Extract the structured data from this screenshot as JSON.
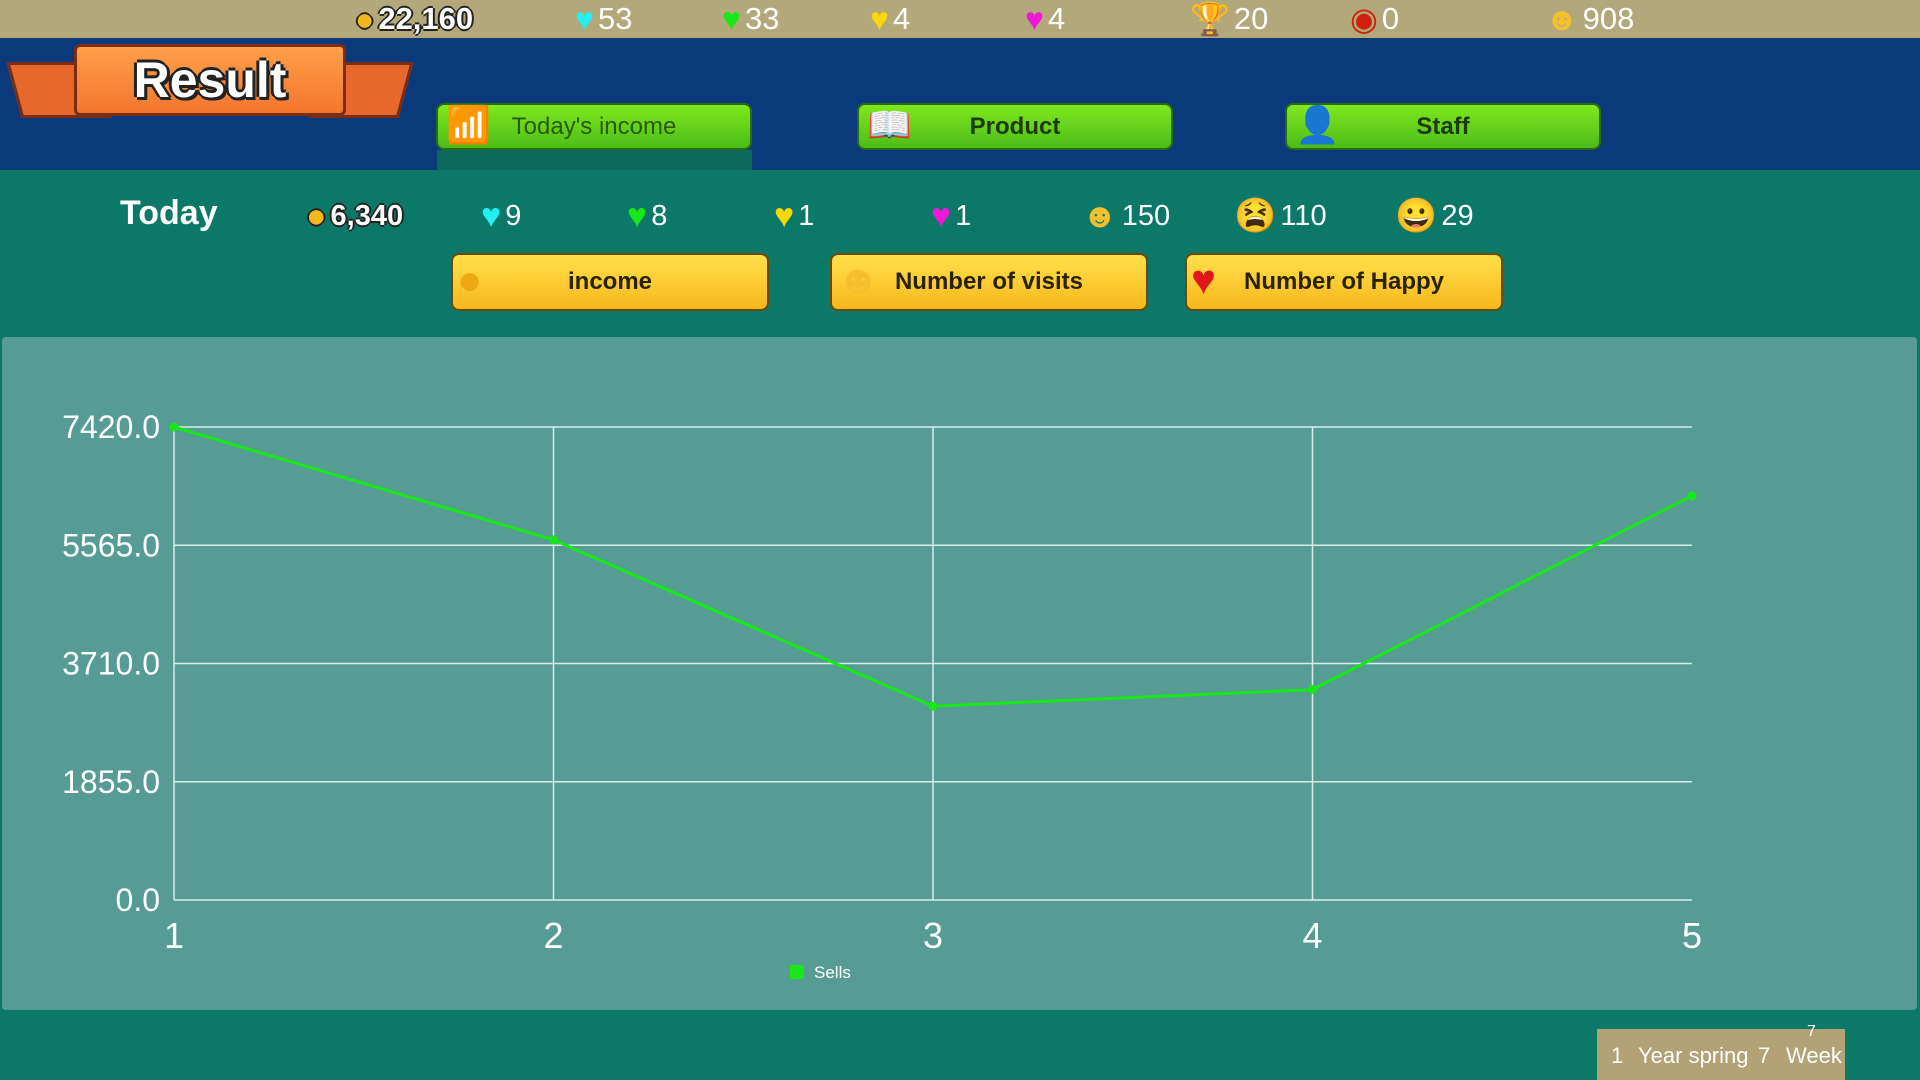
{
  "topbar": {
    "coins": "22,160",
    "cyan_hearts": "53",
    "green_hearts": "33",
    "yellow_hearts": "4",
    "pink_hearts": "4",
    "trophies": "20",
    "badges": "0",
    "smiles": "908"
  },
  "header": {
    "title": "Result",
    "tabs": [
      {
        "label": "Today's income",
        "icon": "chart-icon",
        "active": true
      },
      {
        "label": "Product",
        "icon": "book-icon"
      },
      {
        "label": "Staff",
        "icon": "person-icon"
      }
    ]
  },
  "today": {
    "label": "Today",
    "coins": "6,340",
    "cyan_hearts": "9",
    "green_hearts": "8",
    "yellow_hearts": "1",
    "pink_hearts": "1",
    "happy": "150",
    "angry": "110",
    "grin": "29"
  },
  "buttons": [
    {
      "label": "income",
      "icon": "coin-icon"
    },
    {
      "label": "Number of visits",
      "icon": "smile-icon"
    },
    {
      "label": "Number of Happy",
      "icon": "heart-icon"
    }
  ],
  "colors": {
    "line": "#18e818",
    "panel": "#569c94",
    "grid": "#d8ece8"
  },
  "chart_data": {
    "type": "line",
    "x": [
      1,
      2,
      3,
      4,
      5
    ],
    "series": [
      {
        "name": "Sells",
        "values": [
          7420,
          5650,
          3040,
          3300,
          6340
        ]
      }
    ],
    "yticks": [
      "0.0",
      "1855.0",
      "3710.0",
      "5565.0",
      "7420.0"
    ],
    "xticks": [
      "1",
      "2",
      "3",
      "4",
      "5"
    ],
    "ylim": [
      0,
      7420
    ],
    "xlim": [
      1,
      5
    ],
    "grid": true,
    "legend": "bottom"
  },
  "date": {
    "year": "1",
    "year_label": "Year spring",
    "week": "7",
    "week_label": "Week",
    "day": "7"
  }
}
